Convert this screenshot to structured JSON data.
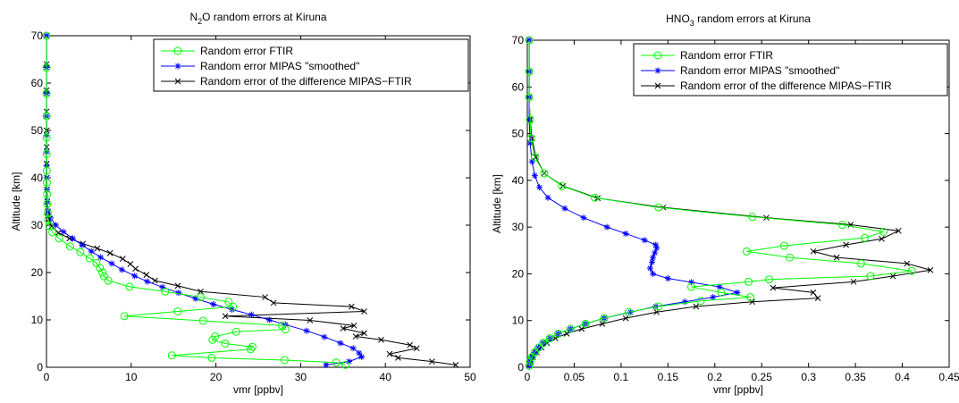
{
  "chart_data": [
    {
      "type": "line",
      "title": "N₂O random errors at Kiruna",
      "title_main": "N",
      "title_sub": "2",
      "title_rest": "O random errors at Kiruna",
      "xlabel": "vmr [ppbv]",
      "ylabel": "Altitude [km]",
      "xlim": [
        0,
        50
      ],
      "ylim": [
        0,
        70
      ],
      "xticks": [
        "0",
        "10",
        "20",
        "30",
        "40",
        "50"
      ],
      "yticks": [
        "0",
        "10",
        "20",
        "30",
        "40",
        "50",
        "60",
        "70"
      ],
      "legend_position": "top-right",
      "grid": false,
      "series": [
        {
          "name": "Random error FTIR",
          "color": "#00ff00",
          "marker": "circle",
          "points": [
            [
              35.3,
              0.5
            ],
            [
              34.2,
              1.0
            ],
            [
              28.1,
              1.5
            ],
            [
              19.5,
              2.0
            ],
            [
              14.8,
              2.5
            ],
            [
              24.1,
              3.8
            ],
            [
              24.3,
              4.3
            ],
            [
              21.1,
              5.0
            ],
            [
              19.6,
              5.8
            ],
            [
              19.9,
              6.5
            ],
            [
              22.4,
              7.5
            ],
            [
              28.2,
              8.0
            ],
            [
              27.8,
              8.8
            ],
            [
              18.5,
              9.8
            ],
            [
              9.2,
              10.8
            ],
            [
              15.5,
              11.8
            ],
            [
              22.0,
              12.8
            ],
            [
              21.5,
              13.8
            ],
            [
              18.2,
              14.8
            ],
            [
              14.0,
              16.0
            ],
            [
              9.8,
              17.0
            ],
            [
              7.3,
              18.3
            ],
            [
              6.8,
              19.2
            ],
            [
              6.6,
              20.0
            ],
            [
              6.3,
              21.0
            ],
            [
              5.9,
              22.0
            ],
            [
              5.1,
              23.0
            ],
            [
              4.0,
              24.3
            ],
            [
              2.8,
              25.5
            ],
            [
              1.5,
              27.2
            ],
            [
              0.7,
              28.5
            ],
            [
              0.35,
              29.8
            ],
            [
              0.2,
              31.2
            ],
            [
              0.15,
              32.5
            ],
            [
              0.1,
              34.5
            ],
            [
              0.08,
              36.5
            ],
            [
              0.05,
              39.0
            ],
            [
              0.04,
              41.5
            ],
            [
              0.03,
              45.0
            ],
            [
              0.02,
              48.5
            ],
            [
              0.02,
              53.0
            ],
            [
              0.01,
              57.8
            ],
            [
              0.01,
              63.3
            ],
            [
              0.01,
              70.0
            ]
          ]
        },
        {
          "name": "Random error MIPAS \"smoothed\"",
          "color": "#0000ff",
          "marker": "star",
          "points": [
            [
              33.0,
              0.5
            ],
            [
              35.7,
              1.2
            ],
            [
              37.2,
              2.2
            ],
            [
              36.9,
              3.0
            ],
            [
              36.2,
              4.0
            ],
            [
              34.7,
              5.1
            ],
            [
              32.8,
              6.4
            ],
            [
              30.7,
              7.7
            ],
            [
              28.2,
              9.0
            ],
            [
              26.3,
              10.0
            ],
            [
              24.2,
              11.1
            ],
            [
              21.9,
              12.2
            ],
            [
              19.7,
              13.3
            ],
            [
              17.6,
              14.5
            ],
            [
              15.6,
              15.7
            ],
            [
              13.7,
              16.9
            ],
            [
              11.9,
              18.1
            ],
            [
              10.4,
              19.3
            ],
            [
              8.9,
              20.6
            ],
            [
              7.7,
              21.9
            ],
            [
              6.4,
              23.2
            ],
            [
              5.3,
              24.5
            ],
            [
              4.2,
              25.8
            ],
            [
              3.1,
              27.2
            ],
            [
              2.0,
              28.6
            ],
            [
              1.1,
              30.0
            ],
            [
              0.5,
              31.5
            ],
            [
              0.2,
              33.0
            ],
            [
              0.1,
              35.0
            ],
            [
              0.05,
              37.5
            ],
            [
              0.03,
              40.0
            ],
            [
              0.02,
              42.5
            ],
            [
              0.02,
              45.5
            ],
            [
              0.01,
              49.0
            ],
            [
              0.01,
              53.0
            ],
            [
              0.01,
              57.8
            ],
            [
              0.01,
              63.3
            ],
            [
              0.01,
              70.0
            ]
          ]
        },
        {
          "name": "Random error of the difference MIPAS−FTIR",
          "color": "#000000",
          "marker": "x",
          "points": [
            [
              48.3,
              0.5
            ],
            [
              45.5,
              1.2
            ],
            [
              41.5,
              2.0
            ],
            [
              40.5,
              2.8
            ],
            [
              43.7,
              4.0
            ],
            [
              42.9,
              4.7
            ],
            [
              39.5,
              5.8
            ],
            [
              36.5,
              6.5
            ],
            [
              37.5,
              7.2
            ],
            [
              35.0,
              8.2
            ],
            [
              36.3,
              8.8
            ],
            [
              31.1,
              9.9
            ],
            [
              21.1,
              10.8
            ],
            [
              37.5,
              11.8
            ],
            [
              36.0,
              12.8
            ],
            [
              26.8,
              13.6
            ],
            [
              25.8,
              14.8
            ],
            [
              18.2,
              16.0
            ],
            [
              15.5,
              17.2
            ],
            [
              12.8,
              18.3
            ],
            [
              11.8,
              19.5
            ],
            [
              10.5,
              20.8
            ],
            [
              9.9,
              21.8
            ],
            [
              9.0,
              22.9
            ],
            [
              7.5,
              24.1
            ],
            [
              6.0,
              25.1
            ],
            [
              4.3,
              26.1
            ],
            [
              2.7,
              27.2
            ],
            [
              1.4,
              28.4
            ],
            [
              0.6,
              29.8
            ],
            [
              0.3,
              31.3
            ],
            [
              0.15,
              32.8
            ],
            [
              0.1,
              35.0
            ],
            [
              0.06,
              37.5
            ],
            [
              0.04,
              40.0
            ],
            [
              0.03,
              43.0
            ],
            [
              0.02,
              46.5
            ],
            [
              0.02,
              50.0
            ],
            [
              0.01,
              54.0
            ],
            [
              0.01,
              58.5
            ],
            [
              0.01,
              64.0
            ],
            [
              0.01,
              70.0
            ]
          ]
        }
      ]
    },
    {
      "type": "line",
      "title": "HNO₃ random errors at Kiruna",
      "title_main": "HNO",
      "title_sub": "3",
      "title_rest": " random errors at Kiruna",
      "xlabel": "vmr [ppbv]",
      "ylabel": "Altitude [km]",
      "xlim": [
        0,
        0.45
      ],
      "ylim": [
        0,
        70
      ],
      "xticks": [
        "0",
        "0.05",
        "0.1",
        "0.15",
        "0.2",
        "0.25",
        "0.3",
        "0.35",
        "0.4",
        "0.45"
      ],
      "yticks": [
        "0",
        "10",
        "20",
        "30",
        "40",
        "50",
        "60",
        "70"
      ],
      "legend_position": "top-right",
      "grid": false,
      "series": [
        {
          "name": "Random error FTIR",
          "color": "#00ff00",
          "marker": "circle",
          "points": [
            [
              0.002,
              0.3
            ],
            [
              0.003,
              1.2
            ],
            [
              0.005,
              2.2
            ],
            [
              0.008,
              3.2
            ],
            [
              0.012,
              4.2
            ],
            [
              0.017,
              5.2
            ],
            [
              0.024,
              6.2
            ],
            [
              0.033,
              7.2
            ],
            [
              0.046,
              8.2
            ],
            [
              0.062,
              9.3
            ],
            [
              0.082,
              10.5
            ],
            [
              0.108,
              11.8
            ],
            [
              0.14,
              13.0
            ],
            [
              0.185,
              14.2
            ],
            [
              0.238,
              15.0
            ],
            [
              0.207,
              16.0
            ],
            [
              0.175,
              17.2
            ],
            [
              0.236,
              18.3
            ],
            [
              0.258,
              18.8
            ],
            [
              0.366,
              19.5
            ],
            [
              0.41,
              20.6
            ],
            [
              0.356,
              22.2
            ],
            [
              0.28,
              23.5
            ],
            [
              0.234,
              24.8
            ],
            [
              0.274,
              26.0
            ],
            [
              0.36,
              27.7
            ],
            [
              0.38,
              29.0
            ],
            [
              0.336,
              30.5
            ],
            [
              0.24,
              32.2
            ],
            [
              0.14,
              34.2
            ],
            [
              0.072,
              36.3
            ],
            [
              0.037,
              38.8
            ],
            [
              0.018,
              41.5
            ],
            [
              0.008,
              45.0
            ],
            [
              0.004,
              49.0
            ],
            [
              0.003,
              53.0
            ],
            [
              0.002,
              57.8
            ],
            [
              0.002,
              63.3
            ],
            [
              0.002,
              70.0
            ]
          ]
        },
        {
          "name": "Random error MIPAS \"smoothed\"",
          "color": "#0000ff",
          "marker": "star",
          "points": [
            [
              0.002,
              0.3
            ],
            [
              0.003,
              1.2
            ],
            [
              0.005,
              2.2
            ],
            [
              0.008,
              3.2
            ],
            [
              0.012,
              4.2
            ],
            [
              0.017,
              5.2
            ],
            [
              0.024,
              6.2
            ],
            [
              0.033,
              7.2
            ],
            [
              0.046,
              8.2
            ],
            [
              0.062,
              9.3
            ],
            [
              0.082,
              10.5
            ],
            [
              0.11,
              11.8
            ],
            [
              0.137,
              13.0
            ],
            [
              0.168,
              14.0
            ],
            [
              0.198,
              15.0
            ],
            [
              0.224,
              16.0
            ],
            [
              0.205,
              17.2
            ],
            [
              0.175,
              18.2
            ],
            [
              0.15,
              19.0
            ],
            [
              0.134,
              20.0
            ],
            [
              0.131,
              21.2
            ],
            [
              0.133,
              22.5
            ],
            [
              0.134,
              23.5
            ],
            [
              0.136,
              24.5
            ],
            [
              0.138,
              25.5
            ],
            [
              0.137,
              26.2
            ],
            [
              0.125,
              27.2
            ],
            [
              0.105,
              28.6
            ],
            [
              0.085,
              30.0
            ],
            [
              0.06,
              32.0
            ],
            [
              0.04,
              34.0
            ],
            [
              0.022,
              36.3
            ],
            [
              0.013,
              38.5
            ],
            [
              0.008,
              41.0
            ],
            [
              0.005,
              44.0
            ],
            [
              0.003,
              48.0
            ],
            [
              0.002,
              53.0
            ],
            [
              0.002,
              57.8
            ],
            [
              0.002,
              63.3
            ],
            [
              0.002,
              70.0
            ]
          ]
        },
        {
          "name": "Random error of the difference MIPAS−FTIR",
          "color": "#000000",
          "marker": "x",
          "points": [
            [
              0.002,
              0.3
            ],
            [
              0.004,
              1.2
            ],
            [
              0.006,
              2.2
            ],
            [
              0.01,
              3.2
            ],
            [
              0.015,
              4.2
            ],
            [
              0.021,
              5.2
            ],
            [
              0.03,
              6.2
            ],
            [
              0.042,
              7.2
            ],
            [
              0.058,
              8.2
            ],
            [
              0.08,
              9.3
            ],
            [
              0.105,
              10.5
            ],
            [
              0.138,
              11.8
            ],
            [
              0.18,
              13.0
            ],
            [
              0.24,
              14.0
            ],
            [
              0.31,
              14.8
            ],
            [
              0.305,
              16.0
            ],
            [
              0.262,
              17.0
            ],
            [
              0.348,
              18.3
            ],
            [
              0.39,
              19.5
            ],
            [
              0.43,
              20.8
            ],
            [
              0.405,
              22.2
            ],
            [
              0.33,
              23.5
            ],
            [
              0.305,
              24.8
            ],
            [
              0.34,
              26.2
            ],
            [
              0.378,
              27.5
            ],
            [
              0.396,
              29.2
            ],
            [
              0.345,
              30.5
            ],
            [
              0.255,
              32.0
            ],
            [
              0.145,
              34.2
            ],
            [
              0.075,
              36.2
            ],
            [
              0.038,
              38.8
            ],
            [
              0.018,
              41.5
            ],
            [
              0.009,
              45.0
            ],
            [
              0.005,
              49.0
            ],
            [
              0.003,
              53.0
            ],
            [
              0.002,
              57.8
            ],
            [
              0.002,
              63.3
            ],
            [
              0.002,
              70.0
            ]
          ]
        }
      ]
    }
  ]
}
